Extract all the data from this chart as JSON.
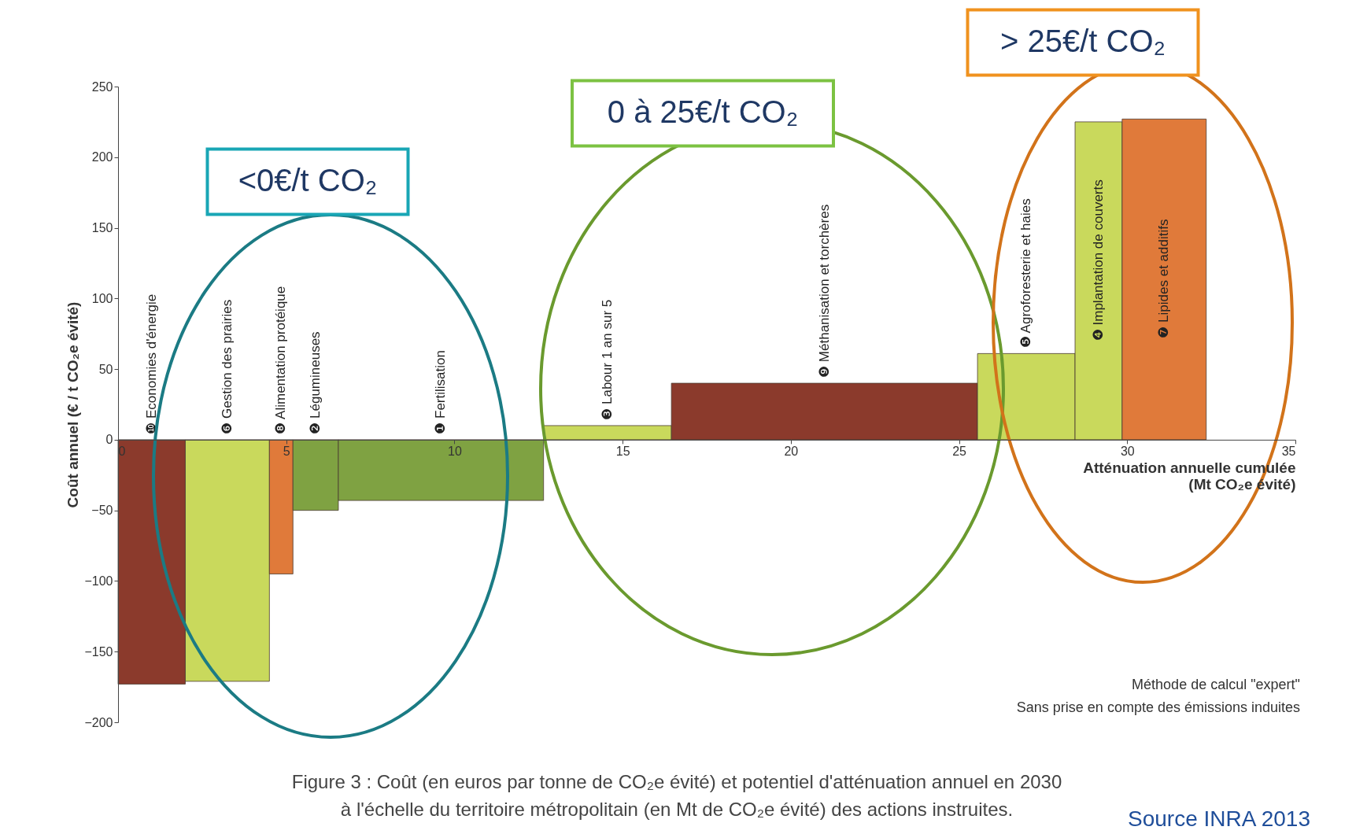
{
  "chart_data": {
    "type": "histogram",
    "bins": [
      0,
      2.0,
      4.5,
      5.2,
      6.55,
      12.65,
      16.45,
      25.55,
      28.45,
      29.85,
      32.35
    ],
    "values": [
      -173,
      -171,
      -95,
      -50,
      -43,
      10,
      40,
      61,
      225,
      227
    ],
    "colors": [
      "#8b3a2c",
      "#c9d95c",
      "#e07a3a",
      "#7fa242",
      "#7fa242",
      "#c9d95c",
      "#8b3a2c",
      "#c9d95c",
      "#c9d95c",
      "#e07a3a"
    ],
    "xlim": [
      0,
      35
    ],
    "xticks": [
      0,
      5,
      10,
      15,
      20,
      25,
      30,
      35
    ],
    "ylim": [
      -200,
      250
    ],
    "yticks": [
      -200,
      -150,
      -100,
      -50,
      0,
      50,
      100,
      150,
      200,
      250
    ],
    "xlabel": "Atténuation  annuelle cumulée\n(Mt CO₂e évité)",
    "ylabel": "Coût annuel  (€ / t CO₂e évité)",
    "grid": false,
    "annotations": [
      "❿ Economies d'énergie",
      "❻ Gestion des prairies",
      "❽ Alimentation protéique",
      "❷ Légumineuses",
      "❶ Fertilisation",
      "❸ Labour 1 an sur 5",
      "❾ Méthanisation et torchères",
      "❺ Agroforesterie et haies",
      "❹ Implantation de couverts",
      "❼ Lipides et additifs",
      "<0€/t CO₂",
      "0 à 25€/t CO₂",
      "> 25€/t CO₂",
      "Méthode de calcul \"expert\"",
      "Sans prise en compte des émissions induites",
      "Figure 3 : Coût (en euros par tonne de CO₂e évité) et potentiel d'atténuation  annuel en 2030\nà l'échelle du territoire métropolitain (en Mt de CO₂e évité) des actions instruites.",
      "Source INRA 2013"
    ]
  }
}
